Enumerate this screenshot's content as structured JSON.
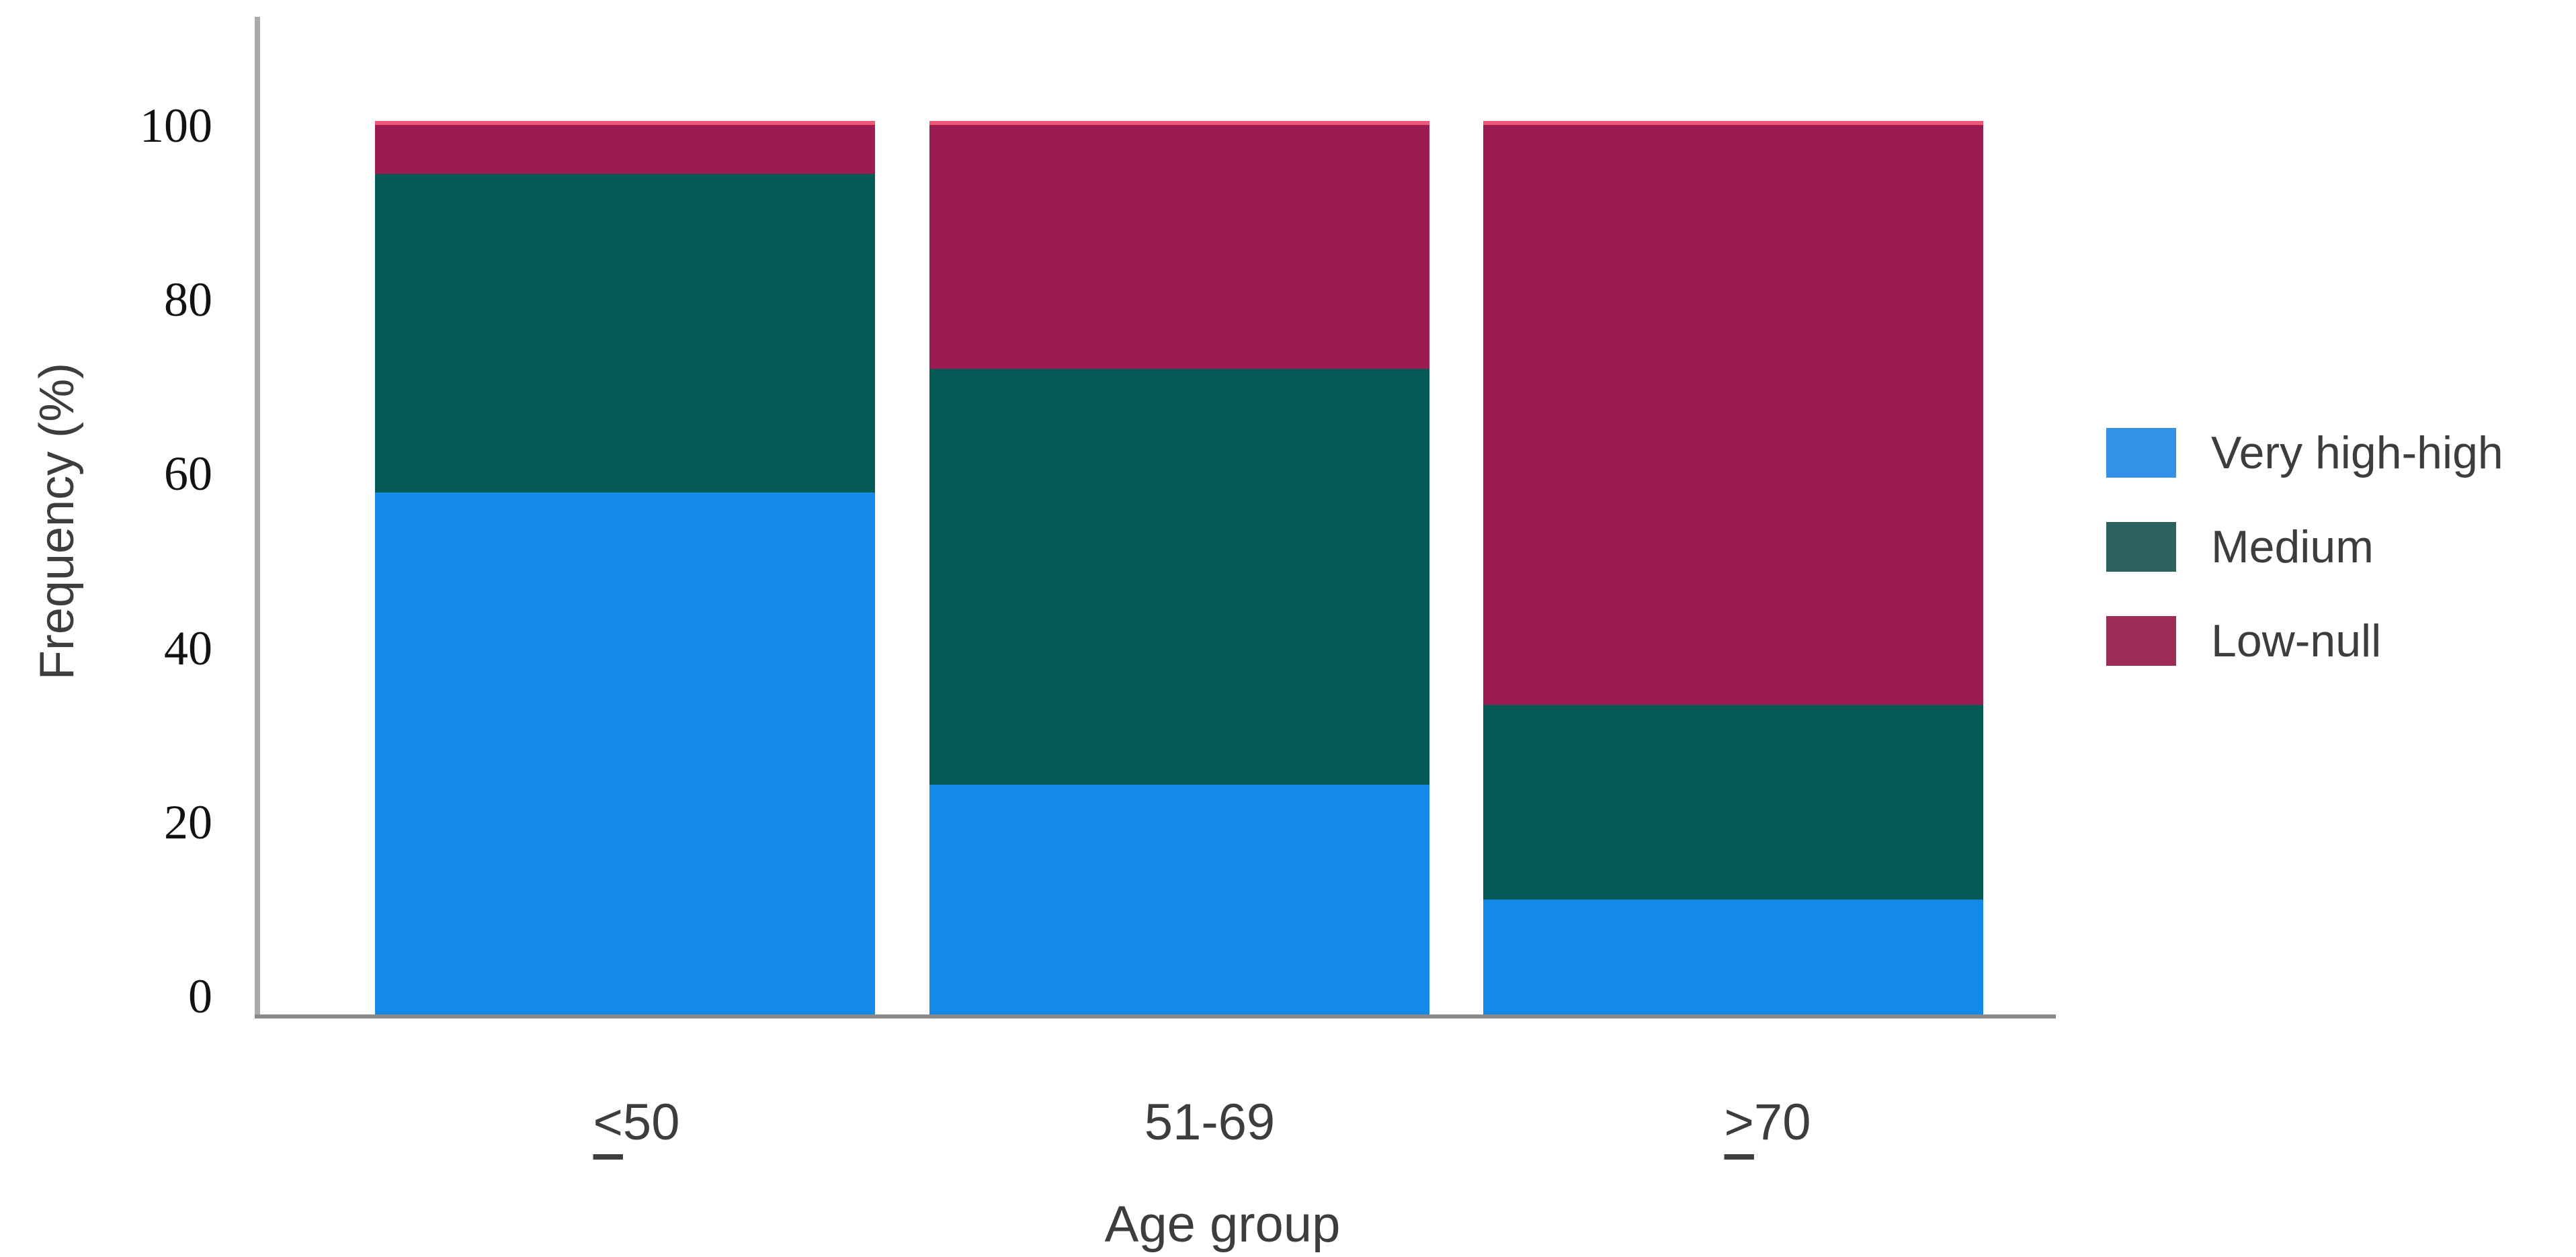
{
  "chart_data": {
    "type": "bar",
    "stacked": true,
    "orientation": "vertical",
    "title": "",
    "xlabel": "Age group",
    "ylabel": "Frequency (%)",
    "categories": [
      "≤50",
      "51-69",
      "≥70"
    ],
    "category_display": [
      {
        "operator": "<",
        "operator_underlined": true,
        "text": "50"
      },
      {
        "operator": "",
        "operator_underlined": false,
        "text": "51-69"
      },
      {
        "operator": ">",
        "operator_underlined": true,
        "text": "70"
      }
    ],
    "series": [
      {
        "name": "Very high-high",
        "values": [
          59,
          26,
          13
        ],
        "color": "#1589E7",
        "legend_swatch_color": "#3292E7"
      },
      {
        "name": "Medium",
        "values": [
          36,
          47,
          22
        ],
        "color": "#045B55",
        "legend_swatch_color": "#2B615E"
      },
      {
        "name": "Low-null",
        "values": [
          6,
          28,
          66
        ],
        "color": "#9C1B52",
        "legend_swatch_color": "#9D2C58"
      }
    ],
    "stack_totals": [
      101,
      101,
      101
    ],
    "yticks": [
      0,
      20,
      40,
      60,
      80,
      100
    ],
    "ylim": [
      0,
      112
    ],
    "grid": false,
    "legend_position": "right",
    "legend_entries": [
      "Very high-high",
      "Medium",
      "Low-null"
    ]
  },
  "colors": {
    "background": "#FFFFFF",
    "y_axis_line": "#ABABAB",
    "x_axis_line": "#8A8A8A",
    "sans_text": "#3D3D3D",
    "tick_text": "#121212",
    "bar_top_highlight": "#EF5878"
  }
}
